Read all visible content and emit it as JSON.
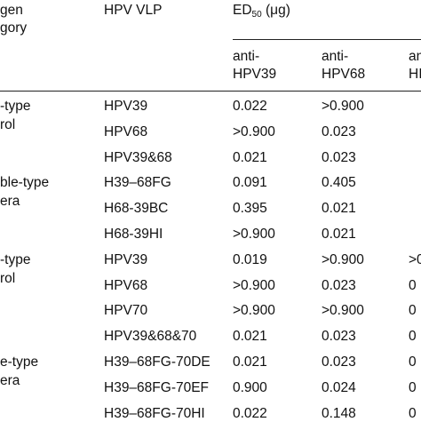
{
  "header": {
    "category": [
      "gen",
      "gory"
    ],
    "vlp": "HPV VLP",
    "ed": {
      "prefix": "ED",
      "sub": "50",
      "suffix": " (μg)"
    },
    "columns": [
      [
        "anti-",
        "HPV39"
      ],
      [
        "anti-",
        "HPV68"
      ],
      [
        "an",
        "HI"
      ]
    ]
  },
  "groups": [
    {
      "label": [
        "-type",
        "rol"
      ],
      "rows": [
        [
          "HPV39",
          "0.022",
          ">0.900"
        ],
        [
          "HPV68",
          ">0.900",
          "0.023"
        ],
        [
          "HPV39&68",
          "0.021",
          "0.023"
        ]
      ]
    },
    {
      "label": [
        "ble-type",
        "era"
      ],
      "rows": [
        [
          "H39–68FG",
          "0.091",
          "0.405"
        ],
        [
          "H68-39BC",
          "0.395",
          "0.021"
        ],
        [
          "H68-39HI",
          ">0.900",
          "0.021"
        ]
      ]
    },
    {
      "label": [
        "-type",
        "rol"
      ],
      "rows": [
        [
          "HPV39",
          "0.019",
          ">0.900",
          ">0"
        ],
        [
          "HPV68",
          ">0.900",
          "0.023",
          "0"
        ],
        [
          "HPV70",
          ">0.900",
          ">0.900",
          "0"
        ],
        [
          "HPV39&68&70",
          "0.021",
          "0.023",
          "0"
        ]
      ]
    },
    {
      "label": [
        "e-type",
        "era"
      ],
      "rows": [
        [
          "H39–68FG-70DE",
          "0.021",
          "0.023",
          "0"
        ],
        [
          "H39–68FG-70EF",
          "0.900",
          "0.024",
          "0"
        ],
        [
          "H39–68FG-70HI",
          "0.022",
          "0.148",
          "0"
        ]
      ]
    }
  ]
}
